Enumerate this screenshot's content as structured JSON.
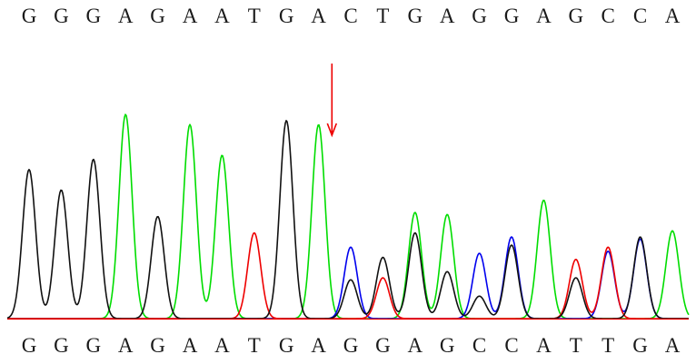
{
  "top_sequence": [
    "G",
    "G",
    "G",
    "A",
    "G",
    "A",
    "A",
    "T",
    "G",
    "A",
    "C",
    "T",
    "G",
    "A",
    "G",
    "G",
    "A",
    "G",
    "C",
    "C",
    "A"
  ],
  "bottom_sequence": [
    "G",
    "G",
    "G",
    "A",
    "G",
    "A",
    "A",
    "T",
    "G",
    "A",
    "G",
    "G",
    "A",
    "G",
    "C",
    "C",
    "A",
    "T",
    "T",
    "G",
    "A"
  ],
  "colors": {
    "A": "#00dd00",
    "C": "#0000ee",
    "G": "#111111",
    "T": "#ee0000",
    "marker": "#ee0000",
    "baseline": "#ee0000",
    "text": "#1a1a1a"
  },
  "marker": {
    "icon": "down-arrow-icon",
    "after_base_index": 9
  },
  "chart_data": {
    "type": "line",
    "description_level_units": "relative signal intensity (0-1)",
    "series": [
      {
        "base": "G",
        "peaks": [
          {
            "pos": 0,
            "h": 0.73
          },
          {
            "pos": 1,
            "h": 0.63
          },
          {
            "pos": 2,
            "h": 0.78
          },
          {
            "pos": 4,
            "h": 0.5
          },
          {
            "pos": 8,
            "h": 0.97
          },
          {
            "pos": 10,
            "h": 0.19
          },
          {
            "pos": 11,
            "h": 0.3
          },
          {
            "pos": 12,
            "h": 0.42
          },
          {
            "pos": 13,
            "h": 0.23
          },
          {
            "pos": 14,
            "h": 0.11
          },
          {
            "pos": 15,
            "h": 0.36
          },
          {
            "pos": 17,
            "h": 0.2
          },
          {
            "pos": 19,
            "h": 0.4
          }
        ]
      },
      {
        "base": "A",
        "peaks": [
          {
            "pos": 3,
            "h": 1.0
          },
          {
            "pos": 5,
            "h": 0.95
          },
          {
            "pos": 6,
            "h": 0.8
          },
          {
            "pos": 9,
            "h": 0.95
          },
          {
            "pos": 12,
            "h": 0.52
          },
          {
            "pos": 13,
            "h": 0.51
          },
          {
            "pos": 16,
            "h": 0.58
          },
          {
            "pos": 20,
            "h": 0.43
          }
        ]
      },
      {
        "base": "C",
        "peaks": [
          {
            "pos": 10,
            "h": 0.35
          },
          {
            "pos": 14,
            "h": 0.32
          },
          {
            "pos": 15,
            "h": 0.4
          },
          {
            "pos": 18,
            "h": 0.33
          },
          {
            "pos": 19,
            "h": 0.39
          }
        ]
      },
      {
        "base": "T",
        "peaks": [
          {
            "pos": 7,
            "h": 0.42
          },
          {
            "pos": 11,
            "h": 0.2
          },
          {
            "pos": 17,
            "h": 0.29
          },
          {
            "pos": 18,
            "h": 0.35
          }
        ]
      }
    ]
  }
}
